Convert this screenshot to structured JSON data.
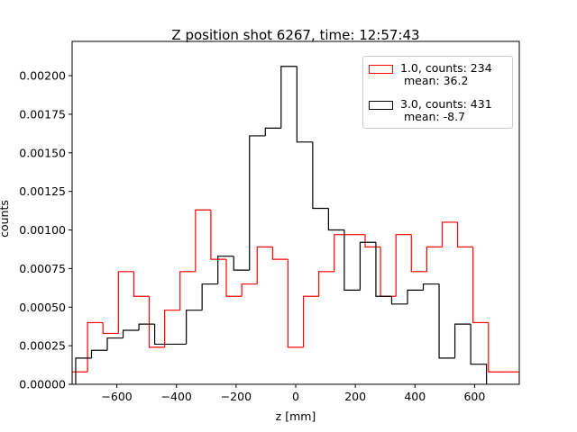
{
  "chart_data": {
    "type": "histogram",
    "title": "Z position shot 6267, time: 12:57:43",
    "x_label": "z [mm]",
    "y_label": "counts",
    "xlim": [
      -750,
      750
    ],
    "ylim": [
      0,
      0.002222
    ],
    "xticks": [
      {
        "value": -600,
        "label": "−600"
      },
      {
        "value": -400,
        "label": "−400"
      },
      {
        "value": -200,
        "label": "−200"
      },
      0,
      200,
      400,
      600
    ],
    "yticks": [
      {
        "value": 0,
        "label": "0.00000"
      },
      {
        "value": 0.00025,
        "label": "0.00025"
      },
      {
        "value": 0.0005,
        "label": "0.00050"
      },
      {
        "value": 0.00075,
        "label": "0.00075"
      },
      {
        "value": 0.001,
        "label": "0.00100"
      },
      {
        "value": 0.00125,
        "label": "0.00125"
      },
      {
        "value": 0.0015,
        "label": "0.00150"
      },
      {
        "value": 0.00175,
        "label": "0.00175"
      },
      {
        "value": 0.002,
        "label": "0.00200"
      }
    ],
    "legend_position": "upper right",
    "series": [
      {
        "name": "1.0, counts: 234\n mean: 36.2",
        "color": "#ff0000",
        "bins": [
          -750,
          -698.3,
          -646.6,
          -594.8,
          -543.1,
          -491.4,
          -439.7,
          -387.9,
          -336.2,
          -284.5,
          -232.8,
          -181.0,
          -129.3,
          -77.6,
          -25.9,
          25.9,
          77.6,
          129.3,
          181.0,
          232.8,
          284.5,
          336.2,
          387.9,
          439.7,
          491.4,
          543.1,
          594.8,
          646.6,
          698.3,
          750
        ],
        "values": [
          8e-05,
          0.0004,
          0.00033,
          0.00073,
          0.00057,
          0.00024,
          0.00048,
          0.00073,
          0.00113,
          0.00081,
          0.00057,
          0.00065,
          0.00089,
          0.00081,
          0.00024,
          0.00057,
          0.00073,
          0.00097,
          0.00097,
          0.00089,
          0.00057,
          0.00097,
          0.00073,
          0.00089,
          0.00105,
          0.00089,
          0.0004,
          8e-05,
          8e-05
        ]
      },
      {
        "name": "3.0, counts: 431\n mean: -8.7",
        "color": "#000000",
        "bins": [
          -738,
          -685,
          -632,
          -579,
          -526,
          -473,
          -420,
          -367,
          -314,
          -261,
          -208,
          -155,
          -102,
          -49,
          4,
          57,
          110,
          163,
          216,
          269,
          322,
          375,
          428,
          481,
          534,
          587,
          640
        ],
        "values": [
          0.00017,
          0.00022,
          0.0003,
          0.00035,
          0.00039,
          0.00026,
          0.00026,
          0.00048,
          0.00065,
          0.00083,
          0.00074,
          0.00161,
          0.00166,
          0.00206,
          0.00157,
          0.00114,
          0.001,
          0.00061,
          0.00092,
          0.00057,
          0.00052,
          0.00061,
          0.00065,
          0.00017,
          0.00039,
          0.00013
        ]
      }
    ]
  }
}
